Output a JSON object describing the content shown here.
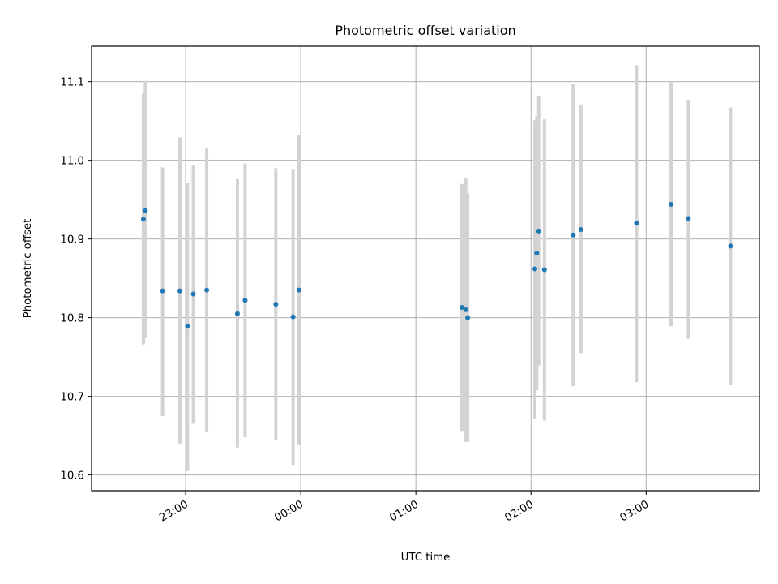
{
  "chart_data": {
    "type": "scatter",
    "title": "Photometric offset variation",
    "xlabel": "UTC time",
    "ylabel": "Photometric offset",
    "x_unit": "UTC time (date spans midnight; 00:00 is the following day)",
    "xlim": [
      "22:11",
      "03:59"
    ],
    "ylim": [
      10.58,
      11.145
    ],
    "x_ticks": [
      "23:00",
      "00:00",
      "01:00",
      "02:00",
      "03:00"
    ],
    "y_ticks": [
      10.6,
      10.7,
      10.8,
      10.9,
      11.0,
      11.1
    ],
    "grid": true,
    "error_bar_color": "#d3d3d3",
    "point_color": "#1f77b4",
    "points": [
      {
        "time": "22:38",
        "y": 10.925,
        "lo": 10.766,
        "hi": 11.085
      },
      {
        "time": "22:39",
        "y": 10.936,
        "lo": 10.774,
        "hi": 11.101
      },
      {
        "time": "22:48",
        "y": 10.834,
        "lo": 10.675,
        "hi": 10.991
      },
      {
        "time": "22:57",
        "y": 10.834,
        "lo": 10.64,
        "hi": 11.029
      },
      {
        "time": "23:01",
        "y": 10.789,
        "lo": 10.605,
        "hi": 10.971
      },
      {
        "time": "23:04",
        "y": 10.83,
        "lo": 10.665,
        "hi": 10.994
      },
      {
        "time": "23:11",
        "y": 10.835,
        "lo": 10.655,
        "hi": 11.015
      },
      {
        "time": "23:27",
        "y": 10.805,
        "lo": 10.635,
        "hi": 10.976
      },
      {
        "time": "23:31",
        "y": 10.822,
        "lo": 10.648,
        "hi": 10.996
      },
      {
        "time": "23:47",
        "y": 10.817,
        "lo": 10.644,
        "hi": 10.99
      },
      {
        "time": "23:56",
        "y": 10.801,
        "lo": 10.613,
        "hi": 10.989
      },
      {
        "time": "23:59",
        "y": 10.835,
        "lo": 10.638,
        "hi": 11.032
      },
      {
        "time": "01:24",
        "y": 10.813,
        "lo": 10.656,
        "hi": 10.97
      },
      {
        "time": "01:26",
        "y": 10.81,
        "lo": 10.642,
        "hi": 10.978
      },
      {
        "time": "01:27",
        "y": 10.8,
        "lo": 10.642,
        "hi": 10.958
      },
      {
        "time": "02:02",
        "y": 10.862,
        "lo": 10.671,
        "hi": 11.051
      },
      {
        "time": "02:03",
        "y": 10.882,
        "lo": 10.708,
        "hi": 11.056
      },
      {
        "time": "02:04",
        "y": 10.91,
        "lo": 10.739,
        "hi": 11.082
      },
      {
        "time": "02:07",
        "y": 10.861,
        "lo": 10.669,
        "hi": 11.052
      },
      {
        "time": "02:22",
        "y": 10.905,
        "lo": 10.713,
        "hi": 11.097
      },
      {
        "time": "02:26",
        "y": 10.912,
        "lo": 10.755,
        "hi": 11.071
      },
      {
        "time": "02:55",
        "y": 10.92,
        "lo": 10.718,
        "hi": 11.121
      },
      {
        "time": "03:13",
        "y": 10.944,
        "lo": 10.789,
        "hi": 11.1
      },
      {
        "time": "03:22",
        "y": 10.926,
        "lo": 10.773,
        "hi": 11.077
      },
      {
        "time": "03:44",
        "y": 10.891,
        "lo": 10.714,
        "hi": 11.067
      }
    ]
  }
}
